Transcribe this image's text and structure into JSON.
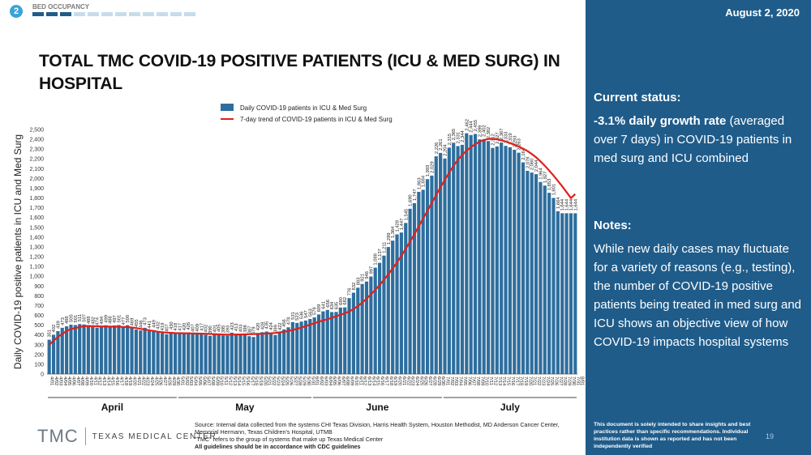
{
  "header": {
    "badge": "2",
    "section": "BED OCCUPANCY",
    "progress_total": 12,
    "progress_active": 3
  },
  "title": "TOTAL TMC COVID-19 POSITIVE PATIENTS (ICU & MED SURG) IN HOSPITAL",
  "date": "August 2, 2020",
  "side": {
    "status_heading": "Current status:",
    "status_bold": "-3.1% daily growth rate",
    "status_rest": " (averaged over 7 days) in COVID-19 patients in med surg and ICU combined",
    "notes_heading": "Notes:",
    "notes_body": "While new daily cases may fluctuate for a variety of reasons (e.g., testing), the number of COVID-19 positive patients being treated in med surg and ICU shows an objective view of how COVID-19 impacts hospital systems",
    "disclaimer": "This document is solely intended to share insights and best practices rather than specific recommendations. Individual institution data is shown as reported and has not been independently verified",
    "page_number": "19"
  },
  "footer": {
    "logo_text": "TMC",
    "logo_name": "TEXAS MEDICAL CENTER",
    "source_line1": "Source: Internal data collected from the systems CHI Texas Division, Harris Health System, Houston Methodist, MD Anderson Cancer Center, Memorial Hermann, Texas Children's Hospital, UTMB",
    "source_line2": "\"TMC\" refers to the group of systems that make up Texas Medical Center",
    "source_line3": "All guidelines should be in accordance with CDC guidelines"
  },
  "colors": {
    "bar": "#2e6e9e",
    "trend": "#e0201b",
    "panel": "#1f5c8a"
  },
  "chart_data": {
    "type": "bar",
    "ylabel": "Daily COVID-19 positive patients in ICU and Med Surg",
    "ylim": [
      0,
      2500
    ],
    "y_tick_step": 100,
    "legend": {
      "bars": "Daily COVID-19 patients in ICU & Med Surg",
      "line": "7-day trend of COVID-19 patients in ICU & Med Surg",
      "placement": "top-left"
    },
    "months": [
      {
        "label": "April",
        "start": 0,
        "end": 29
      },
      {
        "label": "May",
        "start": 30,
        "end": 60
      },
      {
        "label": "June",
        "start": 61,
        "end": 90
      },
      {
        "label": "July",
        "start": 91,
        "end": 121
      }
    ],
    "dates": [
      "4/01",
      "4/02",
      "4/03",
      "4/04",
      "4/05",
      "4/06",
      "4/07",
      "4/08",
      "4/09",
      "4/10",
      "4/11",
      "4/12",
      "4/13",
      "4/14",
      "4/15",
      "4/16",
      "4/17",
      "4/18",
      "4/19",
      "4/20",
      "4/21",
      "4/22",
      "4/23",
      "4/24",
      "4/25",
      "4/26",
      "4/27",
      "4/28",
      "4/29",
      "4/30",
      "5/01",
      "5/02",
      "5/03",
      "5/04",
      "5/05",
      "5/06",
      "5/07",
      "5/08",
      "5/09",
      "5/10",
      "5/11",
      "5/12",
      "5/13",
      "5/14",
      "5/15",
      "5/16",
      "5/17",
      "5/18",
      "5/19",
      "5/20",
      "5/21",
      "5/22",
      "5/23",
      "5/24",
      "5/25",
      "5/26",
      "5/27",
      "5/28",
      "5/29",
      "5/30",
      "5/31",
      "6/01",
      "6/02",
      "6/03",
      "6/04",
      "6/05",
      "6/06",
      "6/07",
      "6/08",
      "6/09",
      "6/10",
      "6/11",
      "6/12",
      "6/13",
      "6/14",
      "6/15",
      "6/16",
      "6/17",
      "6/18",
      "6/19",
      "6/20",
      "6/21",
      "6/22",
      "6/23",
      "6/24",
      "6/25",
      "6/26",
      "6/27",
      "6/28",
      "6/29",
      "6/30",
      "7/01",
      "7/02",
      "7/03",
      "7/04",
      "7/05",
      "7/06",
      "7/07",
      "7/08",
      "7/09",
      "7/10",
      "7/11",
      "7/12",
      "7/13",
      "7/14",
      "7/15",
      "7/16",
      "7/17",
      "7/18",
      "7/19",
      "7/20",
      "7/21",
      "7/22",
      "7/23",
      "7/24",
      "7/25",
      "7/26",
      "7/27",
      "7/28",
      "7/29",
      "7/30",
      "7/31",
      "8/01"
    ],
    "bars": [
      351,
      402,
      439,
      473,
      488,
      505,
      501,
      511,
      507,
      488,
      482,
      474,
      484,
      499,
      488,
      497,
      501,
      477,
      500,
      469,
      455,
      446,
      473,
      441,
      449,
      432,
      419,
      407,
      430,
      418,
      417,
      420,
      426,
      407,
      409,
      417,
      402,
      390,
      401,
      405,
      395,
      393,
      423,
      413,
      403,
      398,
      387,
      379,
      420,
      428,
      435,
      424,
      399,
      422,
      456,
      478,
      531,
      523,
      536,
      547,
      563,
      579,
      609,
      641,
      656,
      634,
      635,
      680,
      682,
      776,
      832,
      883,
      921,
      946,
      997,
      1088,
      1137,
      1211,
      1299,
      1364,
      1428,
      1447,
      1545,
      1690,
      1747,
      1863,
      1884,
      1993,
      2029,
      2226,
      2261,
      2204,
      2315,
      2365,
      2331,
      2344,
      2462,
      2444,
      2455,
      2399,
      2402,
      2382,
      2312,
      2327,
      2367,
      2333,
      2319,
      2293,
      2263,
      2164,
      2078,
      2060,
      2044,
      1964,
      1927,
      1853,
      1801,
      1664,
      1644,
      1644,
      1644,
      1644
    ],
    "bar_labels": [
      351,
      402,
      439,
      473,
      488,
      505,
      501,
      511,
      507,
      488,
      482,
      474,
      484,
      499,
      488,
      497,
      501,
      477,
      500,
      469,
      455,
      446,
      473,
      441,
      449,
      432,
      419,
      407,
      430,
      418,
      417,
      420,
      426,
      407,
      409,
      417,
      402,
      390,
      401,
      405,
      395,
      393,
      423,
      413,
      403,
      398,
      387,
      379,
      420,
      428,
      435,
      424,
      399,
      422,
      456,
      478,
      531,
      523,
      536,
      547,
      563,
      579,
      609,
      641,
      656,
      634,
      635,
      680,
      682,
      776,
      832,
      883,
      921,
      946,
      997,
      1088,
      1137,
      1211,
      1299,
      1364,
      1428,
      1447,
      1545,
      1690,
      1747,
      1863,
      1884,
      1993,
      2029,
      2226,
      2261,
      2204,
      2315,
      2365,
      2331,
      2344,
      2462,
      2444,
      2455,
      2399,
      2402,
      2382,
      2312,
      2327,
      2367,
      2333,
      2319,
      2293,
      2263,
      2164,
      2078,
      2060,
      2044,
      1964,
      1927,
      1853,
      1801,
      1664,
      1644,
      1644,
      1644,
      1644
    ],
    "trend": [
      300,
      340,
      380,
      410,
      440,
      460,
      470,
      480,
      490,
      492,
      490,
      488,
      487,
      486,
      485,
      484,
      484,
      482,
      480,
      476,
      470,
      462,
      455,
      448,
      440,
      433,
      428,
      424,
      421,
      419,
      418,
      417,
      416,
      415,
      414,
      413,
      412,
      410,
      408,
      406,
      404,
      403,
      403,
      404,
      405,
      406,
      407,
      408,
      410,
      412,
      414,
      417,
      420,
      426,
      432,
      440,
      450,
      462,
      475,
      490,
      505,
      520,
      535,
      548,
      560,
      575,
      590,
      605,
      622,
      640,
      665,
      695,
      730,
      770,
      815,
      860,
      910,
      965,
      1020,
      1080,
      1140,
      1210,
      1280,
      1355,
      1430,
      1510,
      1590,
      1670,
      1750,
      1830,
      1910,
      1985,
      2060,
      2130,
      2190,
      2240,
      2285,
      2320,
      2350,
      2375,
      2393,
      2403,
      2405,
      2400,
      2390,
      2378,
      2362,
      2345,
      2325,
      2305,
      2280,
      2250,
      2215,
      2175,
      2130,
      2080,
      2030,
      1975,
      1920,
      1860,
      1800,
      1840
    ]
  }
}
